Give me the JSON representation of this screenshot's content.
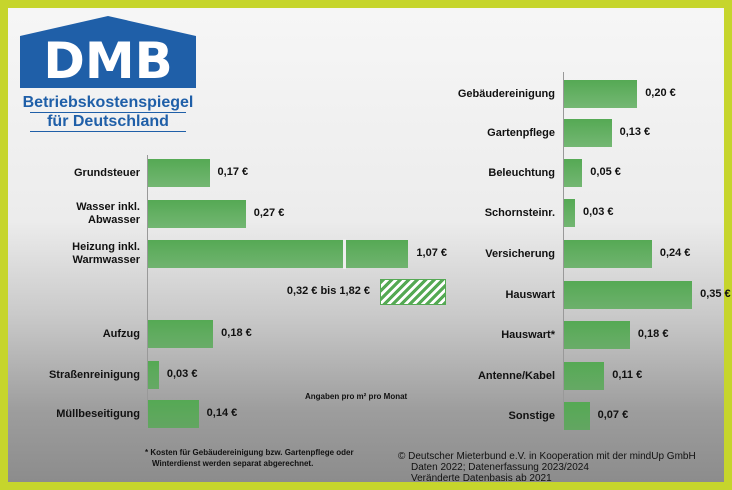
{
  "logo": {
    "mark": "DMB",
    "line1": "Betriebskostenspiegel",
    "line2": "für Deutschland"
  },
  "chart_data": [
    {
      "type": "bar",
      "orientation": "horizontal",
      "color": "#55a954",
      "categories": [
        "Grundsteuer",
        "Wasser inkl.\nAbwasser",
        "Heizung inkl.\nWarmwasser",
        "Aufzug",
        "Straßenreinigung",
        "Müllbeseitigung"
      ],
      "values": [
        0.17,
        0.27,
        1.07,
        0.18,
        0.03,
        0.14
      ],
      "value_labels": [
        "0,17 €",
        "0,27 €",
        "1,07 €",
        "0,18 €",
        "0,03 €",
        "0,14 €"
      ],
      "range_label": "0,32 € bis 1,82 €"
    },
    {
      "type": "bar",
      "orientation": "horizontal",
      "color": "#55a954",
      "categories": [
        "Gebäudereinigung",
        "Gartenpflege",
        "Beleuchtung",
        "Schornsteinr.",
        "Versicherung",
        "Hauswart",
        "Hauswart*",
        "Antenne/Kabel",
        "Sonstige"
      ],
      "values": [
        0.2,
        0.13,
        0.05,
        0.03,
        0.24,
        0.35,
        0.18,
        0.11,
        0.07
      ],
      "value_labels": [
        "0,20 €",
        "0,13 €",
        "0,05 €",
        "0,03 €",
        "0,24 €",
        "0,35 €",
        "0,18 €",
        "0,11 €",
        "0,07 €"
      ]
    }
  ],
  "note": "Angaben pro m² pro Monat",
  "footnote": [
    "* Kosten für Gebäudereinigung bzw. Gartenpflege oder",
    "Winterdienst werden separat abgerechnet."
  ],
  "credits": [
    "© Deutscher Mieterbund e.V. in Kooperation mit der mindUp GmbH",
    "Daten 2022; Datenerfassung 2023/2024",
    "Veränderte Datenbasis ab 2021"
  ]
}
